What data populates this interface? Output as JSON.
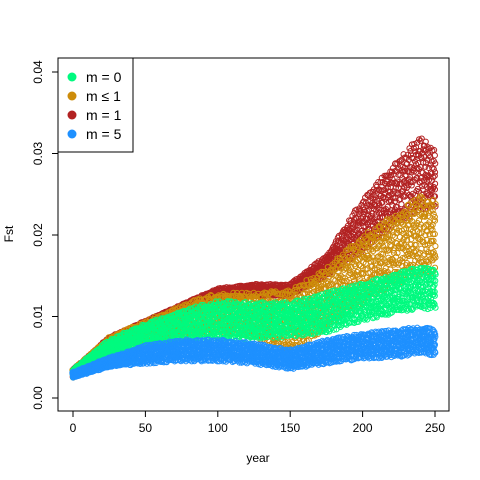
{
  "chart_data": {
    "type": "scatter",
    "xlabel": "year",
    "ylabel": "Fst",
    "xlim": [
      0,
      250
    ],
    "ylim": [
      0,
      0.04
    ],
    "x_ticks": [
      "0",
      "50",
      "100",
      "150",
      "200",
      "250"
    ],
    "y_ticks": [
      "0.00",
      "0.01",
      "0.02",
      "0.03",
      "0.04"
    ],
    "x_tick_values": [
      0,
      50,
      100,
      150,
      200,
      250
    ],
    "y_tick_values": [
      0,
      0.01,
      0.02,
      0.03,
      0.04
    ],
    "grid": false,
    "legend_position": "top-left",
    "series": [
      {
        "name": "m = 1",
        "color": "#B22222",
        "x": [
          0,
          25,
          50,
          75,
          100,
          125,
          150,
          175,
          200,
          225,
          240,
          250
        ],
        "low": [
          0.0025,
          0.0065,
          0.0085,
          0.0105,
          0.012,
          0.0125,
          0.0125,
          0.015,
          0.018,
          0.0215,
          0.023,
          0.023
        ],
        "high": [
          0.0035,
          0.0075,
          0.0095,
          0.0115,
          0.0135,
          0.014,
          0.014,
          0.0175,
          0.0245,
          0.0295,
          0.0325,
          0.0305
        ]
      },
      {
        "name": "m ≤ 1",
        "color": "#CD8C0A",
        "x": [
          0,
          25,
          50,
          75,
          100,
          125,
          150,
          175,
          200,
          225,
          240,
          250
        ],
        "low": [
          0.0025,
          0.0055,
          0.0065,
          0.0075,
          0.008,
          0.0075,
          0.0055,
          0.0085,
          0.0115,
          0.014,
          0.015,
          0.015
        ],
        "high": [
          0.0035,
          0.0075,
          0.0095,
          0.0115,
          0.013,
          0.013,
          0.0135,
          0.016,
          0.02,
          0.023,
          0.025,
          0.0245
        ]
      },
      {
        "name": "m = 0",
        "color": "#00FA7F",
        "x": [
          0,
          25,
          50,
          75,
          100,
          125,
          150,
          175,
          200,
          225,
          240,
          250
        ],
        "low": [
          0.0025,
          0.005,
          0.006,
          0.0068,
          0.0072,
          0.0072,
          0.0075,
          0.008,
          0.0095,
          0.0105,
          0.011,
          0.0108
        ],
        "high": [
          0.0035,
          0.0072,
          0.0092,
          0.0108,
          0.012,
          0.0118,
          0.0118,
          0.013,
          0.0142,
          0.0155,
          0.0162,
          0.016
        ]
      },
      {
        "name": "m = 5",
        "color": "#1E90FF",
        "x": [
          0,
          25,
          50,
          75,
          100,
          125,
          150,
          175,
          200,
          225,
          240,
          250
        ],
        "low": [
          0.0025,
          0.0038,
          0.0042,
          0.0045,
          0.0045,
          0.0042,
          0.0035,
          0.0042,
          0.0048,
          0.005,
          0.0055,
          0.0052
        ],
        "high": [
          0.0032,
          0.005,
          0.0065,
          0.0072,
          0.0072,
          0.0068,
          0.006,
          0.0072,
          0.008,
          0.0085,
          0.0088,
          0.0085
        ]
      }
    ],
    "legend": [
      {
        "label": "m = 0",
        "color": "#00FA7F"
      },
      {
        "label": "m ≤ 1",
        "color": "#CD8C0A"
      },
      {
        "label": "m = 1",
        "color": "#B22222"
      },
      {
        "label": "m = 5",
        "color": "#1E90FF"
      }
    ]
  }
}
